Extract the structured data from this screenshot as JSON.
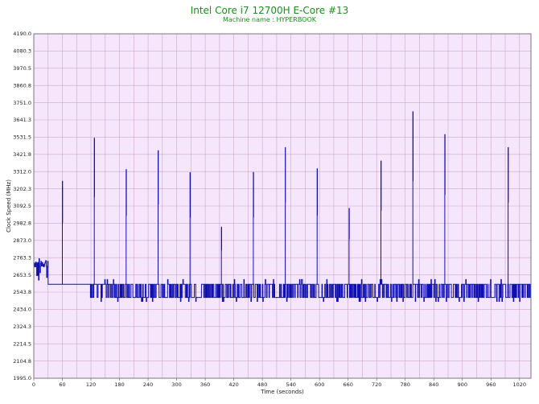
{
  "chart_data": {
    "type": "line",
    "title": "Intel Core i7 12700H E-Core #13",
    "subtitle": "Machine name : HYPERBOOK",
    "xlabel": "Time (seconds)",
    "ylabel": "Clock Speed (MHz)",
    "xlim": [
      0,
      1044
    ],
    "ylim": [
      1995.0,
      4190.0
    ],
    "x_ticks": [
      "0",
      "60",
      "120",
      "180",
      "240",
      "300",
      "360",
      "420",
      "480",
      "540",
      "600",
      "660",
      "720",
      "780",
      "840",
      "900",
      "960",
      "1020"
    ],
    "y_ticks": [
      "1995.0",
      "2104.8",
      "2214.5",
      "2324.3",
      "2434.0",
      "2543.8",
      "2653.5",
      "2763.3",
      "2873.0",
      "2982.8",
      "3092.5",
      "3202.3",
      "3312.0",
      "3421.8",
      "3531.5",
      "3641.3",
      "3751.0",
      "3860.8",
      "3970.5",
      "4080.3",
      "4190.0"
    ],
    "grid": true,
    "colors": {
      "line": "#1010b0",
      "plot_bg": "#f6e6fb",
      "grid": "#c9a8cc",
      "title": "#1a8f1a"
    },
    "series": [
      {
        "name": "",
        "baseline_mhz": 2594,
        "base_level_mhz": 2510,
        "spikes": [
          {
            "x": 60,
            "y": 3250
          },
          {
            "x": 127,
            "y": 3525
          },
          {
            "x": 194,
            "y": 3325
          },
          {
            "x": 261,
            "y": 3445
          },
          {
            "x": 328,
            "y": 3305
          },
          {
            "x": 394,
            "y": 2958
          },
          {
            "x": 461,
            "y": 3307
          },
          {
            "x": 528,
            "y": 3465
          },
          {
            "x": 595,
            "y": 3330
          },
          {
            "x": 662,
            "y": 3077
          },
          {
            "x": 729,
            "y": 3379
          },
          {
            "x": 796,
            "y": 3693
          },
          {
            "x": 863,
            "y": 3548
          },
          {
            "x": 996,
            "y": 3465
          }
        ]
      }
    ]
  }
}
